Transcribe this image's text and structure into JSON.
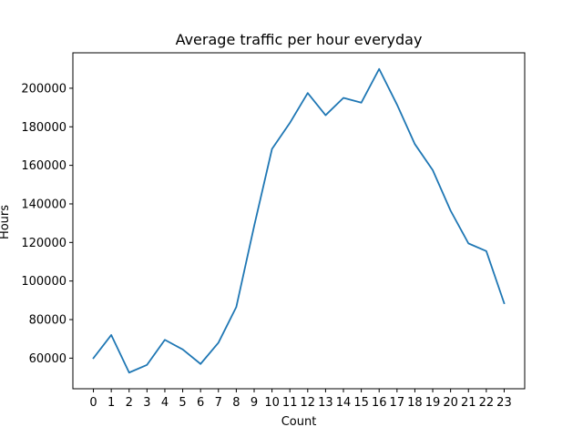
{
  "chart_data": {
    "type": "line",
    "title": "Average traffic per hour everyday",
    "xlabel": "Count",
    "ylabel": "Hours",
    "x": [
      0,
      1,
      2,
      3,
      4,
      5,
      6,
      7,
      8,
      9,
      10,
      11,
      12,
      13,
      14,
      15,
      16,
      17,
      18,
      19,
      20,
      21,
      22,
      23
    ],
    "series": [
      {
        "values": [
          60000,
          72000,
          52500,
          56500,
          69500,
          64500,
          57000,
          68000,
          86500,
          128500,
          168500,
          182000,
          197500,
          186000,
          195000,
          192500,
          210000,
          191500,
          171000,
          157500,
          136500,
          119500,
          115500,
          88500
        ],
        "color": "#1f77b4"
      }
    ],
    "xticks": [
      "0",
      "1",
      "2",
      "3",
      "4",
      "5",
      "6",
      "7",
      "8",
      "9",
      "10",
      "11",
      "12",
      "13",
      "14",
      "15",
      "16",
      "17",
      "18",
      "19",
      "20",
      "21",
      "22",
      "23"
    ],
    "yticks": [
      60000,
      80000,
      100000,
      120000,
      140000,
      160000,
      180000,
      200000
    ],
    "xlim": [
      -1.15,
      24.15
    ],
    "ylim": [
      44125,
      218375
    ],
    "grid": false,
    "legend": "none"
  }
}
